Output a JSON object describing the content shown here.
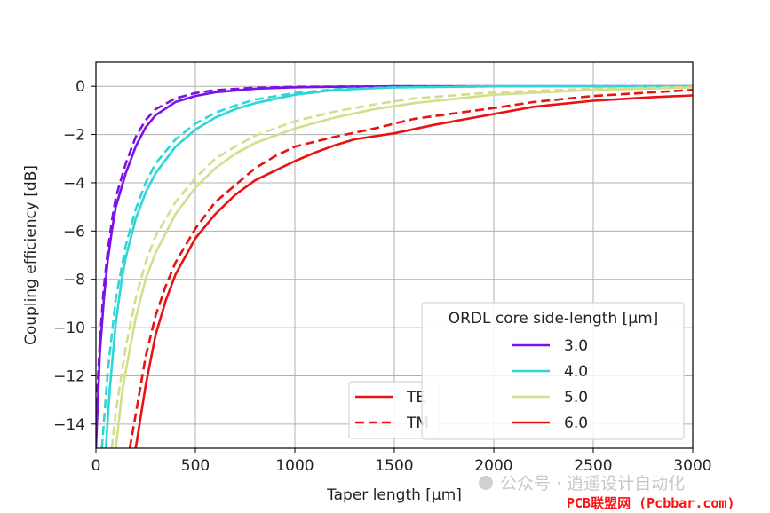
{
  "chart_data": {
    "type": "line",
    "title": "",
    "xlabel": "Taper length [μm]",
    "ylabel": "Coupling efficiency [dB]",
    "xlim": [
      0,
      3000
    ],
    "ylim": [
      -15,
      1
    ],
    "x_ticks": [
      0,
      500,
      1000,
      1500,
      2000,
      2500,
      3000
    ],
    "x_tick_labels": [
      "0",
      "500",
      "1000",
      "1500",
      "2000",
      "2500",
      "3000"
    ],
    "y_ticks": [
      0,
      -2,
      -4,
      -6,
      -8,
      -10,
      -12,
      -14
    ],
    "y_tick_labels": [
      "0",
      "−2",
      "−4",
      "−6",
      "−8",
      "−10",
      "−12",
      "−14"
    ],
    "grid": true,
    "legend_color": {
      "title": "ORDL core side-length [μm]",
      "placement": "lower-right",
      "entries": [
        {
          "label": "3.0",
          "color": "#7a12e8"
        },
        {
          "label": "4.0",
          "color": "#2ed6d6"
        },
        {
          "label": "5.0",
          "color": "#d4de8a"
        },
        {
          "label": "6.0",
          "color": "#e81212"
        }
      ]
    },
    "legend_style": {
      "placement": "lower-center",
      "entries": [
        {
          "label": "TE",
          "dash": "solid"
        },
        {
          "label": "TM",
          "dash": "dashed"
        }
      ]
    },
    "series": [
      {
        "core": "3.0",
        "mode": "TE",
        "color": "#7a12e8",
        "dash": "solid",
        "x": [
          0,
          20,
          40,
          60,
          80,
          100,
          150,
          200,
          250,
          300,
          400,
          500,
          600,
          800,
          1000,
          1200,
          1500,
          2000,
          2500,
          3000
        ],
        "y": [
          -15,
          -11,
          -8.8,
          -7.2,
          -6.0,
          -5.0,
          -3.6,
          -2.5,
          -1.7,
          -1.2,
          -0.65,
          -0.4,
          -0.25,
          -0.1,
          -0.04,
          -0.02,
          0,
          0,
          0,
          0
        ]
      },
      {
        "core": "3.0",
        "mode": "TM",
        "color": "#7a12e8",
        "dash": "dashed",
        "x": [
          0,
          20,
          40,
          60,
          80,
          100,
          150,
          200,
          250,
          300,
          400,
          500,
          600,
          800,
          1000,
          1500,
          2000,
          2500,
          3000
        ],
        "y": [
          -13.8,
          -10.5,
          -8.3,
          -6.8,
          -5.6,
          -4.6,
          -3.2,
          -2.1,
          -1.4,
          -0.95,
          -0.5,
          -0.28,
          -0.16,
          -0.06,
          -0.02,
          0,
          0,
          0,
          0
        ]
      },
      {
        "core": "4.0",
        "mode": "TE",
        "color": "#2ed6d6",
        "dash": "solid",
        "x": [
          50,
          70,
          100,
          130,
          150,
          200,
          250,
          300,
          400,
          500,
          600,
          700,
          800,
          1000,
          1200,
          1500,
          2000,
          2500,
          3000
        ],
        "y": [
          -15,
          -12.5,
          -9.8,
          -8.0,
          -7.1,
          -5.5,
          -4.4,
          -3.6,
          -2.5,
          -1.8,
          -1.3,
          -0.95,
          -0.7,
          -0.35,
          -0.15,
          -0.05,
          0,
          0,
          0
        ]
      },
      {
        "core": "4.0",
        "mode": "TM",
        "color": "#2ed6d6",
        "dash": "dashed",
        "x": [
          30,
          60,
          100,
          150,
          200,
          250,
          300,
          400,
          500,
          600,
          700,
          800,
          1000,
          1200,
          1500,
          2000,
          2500,
          3000
        ],
        "y": [
          -15,
          -11.8,
          -8.8,
          -6.6,
          -5.1,
          -4.0,
          -3.2,
          -2.2,
          -1.55,
          -1.1,
          -0.8,
          -0.55,
          -0.28,
          -0.12,
          -0.04,
          0,
          0,
          0
        ]
      },
      {
        "core": "5.0",
        "mode": "TE",
        "color": "#d4de8a",
        "dash": "solid",
        "x": [
          100,
          130,
          150,
          200,
          250,
          300,
          400,
          500,
          600,
          700,
          800,
          1000,
          1200,
          1400,
          1600,
          2000,
          2500,
          3000
        ],
        "y": [
          -15,
          -12.8,
          -11.8,
          -9.6,
          -8.0,
          -6.9,
          -5.3,
          -4.2,
          -3.4,
          -2.8,
          -2.35,
          -1.75,
          -1.3,
          -0.95,
          -0.7,
          -0.35,
          -0.15,
          -0.05
        ]
      },
      {
        "core": "5.0",
        "mode": "TM",
        "color": "#d4de8a",
        "dash": "dashed",
        "x": [
          80,
          100,
          150,
          200,
          250,
          300,
          400,
          500,
          600,
          700,
          800,
          1000,
          1200,
          1400,
          1600,
          2000,
          2500,
          3000
        ],
        "y": [
          -15,
          -13.5,
          -10.8,
          -8.8,
          -7.3,
          -6.2,
          -4.8,
          -3.8,
          -3.0,
          -2.5,
          -2.05,
          -1.45,
          -1.05,
          -0.75,
          -0.5,
          -0.25,
          -0.1,
          -0.03
        ]
      },
      {
        "core": "6.0",
        "mode": "TE",
        "color": "#e81212",
        "dash": "solid",
        "x": [
          200,
          250,
          300,
          350,
          400,
          500,
          600,
          700,
          800,
          900,
          1000,
          1100,
          1200,
          1300,
          1500,
          1700,
          2000,
          2200,
          2500,
          2800,
          3000
        ],
        "y": [
          -15,
          -12.4,
          -10.3,
          -8.9,
          -7.8,
          -6.3,
          -5.3,
          -4.5,
          -3.9,
          -3.5,
          -3.1,
          -2.75,
          -2.45,
          -2.2,
          -1.95,
          -1.6,
          -1.15,
          -0.85,
          -0.6,
          -0.45,
          -0.38
        ]
      },
      {
        "core": "6.0",
        "mode": "TM",
        "color": "#e81212",
        "dash": "dashed",
        "x": [
          170,
          200,
          250,
          300,
          350,
          400,
          500,
          600,
          700,
          800,
          900,
          1000,
          1100,
          1200,
          1400,
          1600,
          2000,
          2200,
          2500,
          2800,
          3000
        ],
        "y": [
          -15,
          -13.6,
          -11.2,
          -9.5,
          -8.3,
          -7.3,
          -5.9,
          -4.8,
          -4.1,
          -3.4,
          -2.9,
          -2.5,
          -2.3,
          -2.1,
          -1.75,
          -1.35,
          -0.9,
          -0.65,
          -0.4,
          -0.25,
          -0.15
        ]
      }
    ]
  },
  "watermark": {
    "brand_text": "公众号 · 逍遥设计自动化",
    "site_text": "PCB联盟网 (Pcbbar.com)"
  }
}
